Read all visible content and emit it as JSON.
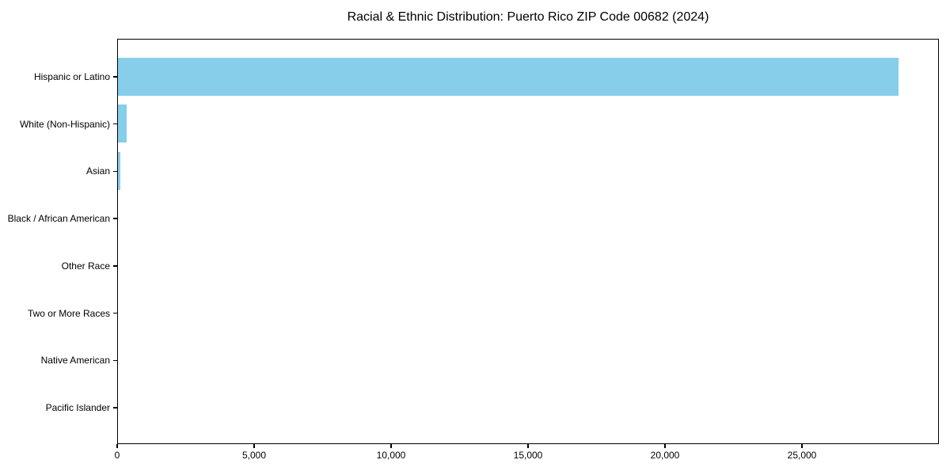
{
  "title": "Racial & Ethnic Distribution: Puerto Rico ZIP Code 00682 (2024)",
  "colors": {
    "bar": "#87CEEB",
    "axis": "#000000",
    "text": "#000000",
    "background": "#FFFFFF"
  },
  "chart_data": {
    "type": "bar",
    "orientation": "horizontal",
    "title": "Racial & Ethnic Distribution: Puerto Rico ZIP Code 00682 (2024)",
    "categories": [
      "Hispanic or Latino",
      "White (Non-Hispanic)",
      "Asian",
      "Black / African American",
      "Other Race",
      "Two or More Races",
      "Native American",
      "Pacific Islander"
    ],
    "values": [
      28500,
      330,
      100,
      0,
      0,
      0,
      0,
      0
    ],
    "xlabel": "",
    "ylabel": "",
    "xlim": [
      0,
      30000
    ],
    "x_ticks": [
      0,
      5000,
      10000,
      15000,
      20000,
      25000
    ],
    "x_tick_labels": [
      "0",
      "5,000",
      "10,000",
      "15,000",
      "20,000",
      "25,000"
    ],
    "bar_color": "#87CEEB",
    "grid": false,
    "legend": "none"
  }
}
